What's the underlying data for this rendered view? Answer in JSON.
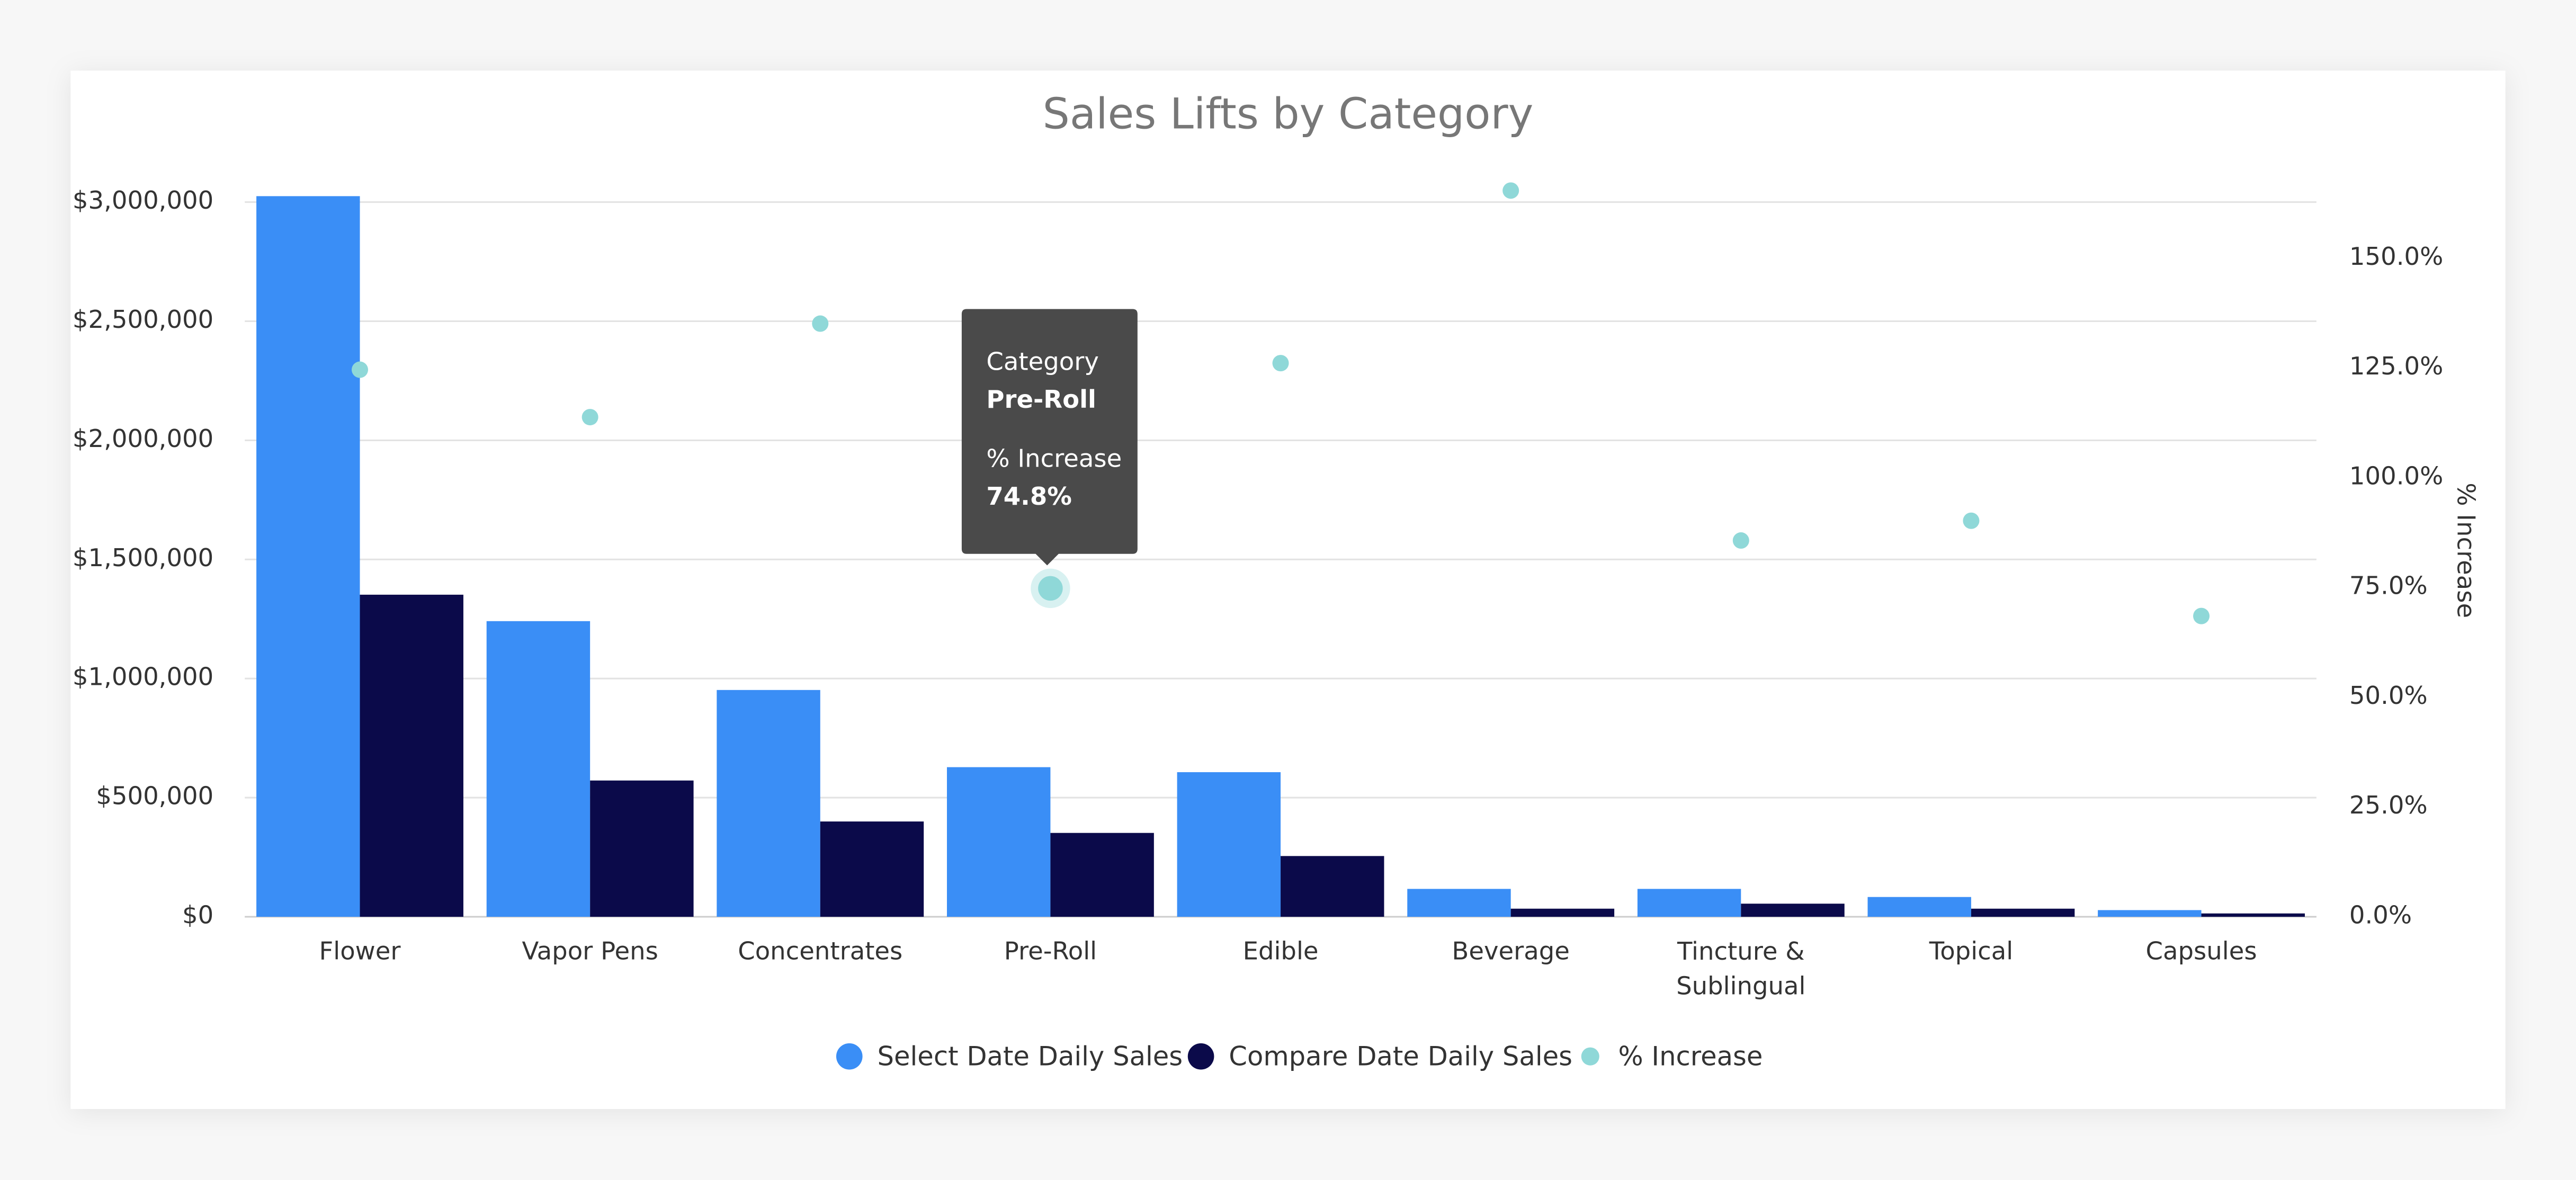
{
  "chart_data": {
    "type": "bar",
    "title": "Sales Lifts by Category",
    "categories": [
      "Flower",
      "Vapor Pens",
      "Concentrates",
      "Pre-Roll",
      "Edible",
      "Beverage",
      "Tincture & Sublingual",
      "Topical",
      "Capsules"
    ],
    "series": [
      {
        "name": "Select Date Daily Sales",
        "color": "#3a8ef6",
        "type": "bar",
        "values": [
          3025000,
          1241000,
          952000,
          628000,
          607000,
          117000,
          117000,
          83000,
          28000
        ]
      },
      {
        "name": "Compare Date Daily Sales",
        "color": "#0b0a4a",
        "type": "bar",
        "values": [
          1352000,
          572000,
          400000,
          352000,
          255000,
          34000,
          55000,
          34000,
          14000
        ]
      },
      {
        "name": "% Increase",
        "color": "#8fd8d8",
        "type": "scatter",
        "axis": "y2",
        "values": [
          124.6,
          113.8,
          135.1,
          74.8,
          126.1,
          165.4,
          85.7,
          90.2,
          68.5
        ]
      }
    ],
    "ylim": [
      0,
      3100000
    ],
    "yticks": [
      {
        "value": 0,
        "label": "$0"
      },
      {
        "value": 500000,
        "label": "$500,000"
      },
      {
        "value": 1000000,
        "label": "$1,000,000"
      },
      {
        "value": 1500000,
        "label": "$1,500,000"
      },
      {
        "value": 2000000,
        "label": "$2,000,000"
      },
      {
        "value": 2500000,
        "label": "$2,500,000"
      },
      {
        "value": 3000000,
        "label": "$3,000,000"
      }
    ],
    "y2label": "% Increase",
    "y2lim": [
      0,
      168.2
    ],
    "y2ticks": [
      {
        "value": 0,
        "label": "0.0%"
      },
      {
        "value": 25,
        "label": "25.0%"
      },
      {
        "value": 50,
        "label": "50.0%"
      },
      {
        "value": 75,
        "label": "75.0%"
      },
      {
        "value": 100,
        "label": "100.0%"
      },
      {
        "value": 125,
        "label": "125.0%"
      },
      {
        "value": 150,
        "label": "150.0%"
      }
    ],
    "grid": true,
    "legend": "bottom",
    "tooltip": {
      "heading": "Category",
      "value_label": "74.8%"
    }
  }
}
